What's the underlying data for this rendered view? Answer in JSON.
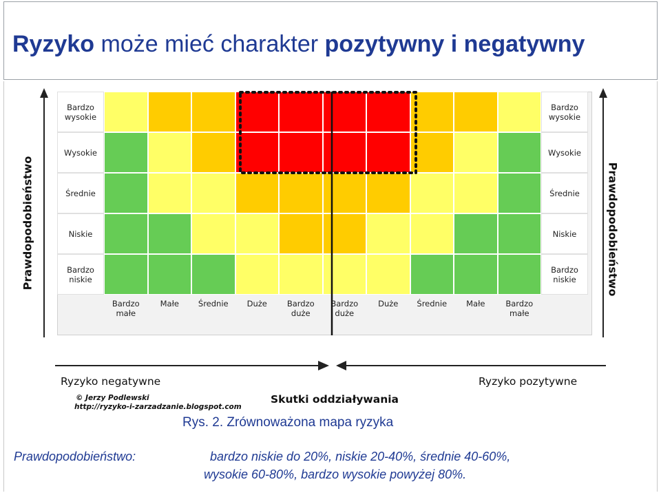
{
  "header": {
    "title_part1": "Ryzyko",
    "title_part2": " może mieć charakter ",
    "title_part3": "pozytywny i negatywny"
  },
  "diagram": {
    "row_labels_left": [
      "Bardzo wysokie",
      "Wysokie",
      "Średnie",
      "Niskie",
      "Bardzo niskie"
    ],
    "row_labels_right": [
      "Bardzo wysokie",
      "Wysokie",
      "Średnie",
      "Niskie",
      "Bardzo niskie"
    ],
    "column_labels": [
      "Bardzo małe",
      "Małe",
      "Średnie",
      "Duże",
      "Bardzo duże",
      "Bardzo duże",
      "Duże",
      "Średnie",
      "Małe",
      "Bardzo małe"
    ],
    "y_axis_label_left": "Prawdopodobieństwo",
    "y_axis_label_right": "Prawdopodobieństwo",
    "negative_label": "Ryzyko negatywne",
    "positive_label": "Ryzyko pozytywne",
    "x_axis_label": "Skutki oddziaływania",
    "credit_line1": "© Jerzy Podlewski",
    "credit_line2": "http://ryzyko-i-zarzadzanie.blogspot.com",
    "colors": {
      "G": "#66cc55",
      "Y": "#ffff66",
      "O": "#ffcc00",
      "R": "#ff0000"
    },
    "cell_colors": [
      [
        "Y",
        "O",
        "O",
        "R",
        "R",
        "R",
        "R",
        "O",
        "O",
        "Y"
      ],
      [
        "G",
        "Y",
        "O",
        "R",
        "R",
        "R",
        "R",
        "O",
        "Y",
        "G"
      ],
      [
        "G",
        "Y",
        "Y",
        "O",
        "O",
        "O",
        "O",
        "Y",
        "Y",
        "G"
      ],
      [
        "G",
        "G",
        "Y",
        "Y",
        "O",
        "O",
        "Y",
        "Y",
        "G",
        "G"
      ],
      [
        "G",
        "G",
        "G",
        "Y",
        "Y",
        "Y",
        "Y",
        "G",
        "G",
        "G"
      ]
    ]
  },
  "caption": "Rys. 2. Zrównoważona mapa ryzyka",
  "description": {
    "label": "Prawdopodobieństwo:",
    "line1": "bardzo niskie do 20%, niskie 20-40%, średnie 40-60%,",
    "line2": "wysokie 60-80%, bardzo wysokie powyżej 80%."
  }
}
